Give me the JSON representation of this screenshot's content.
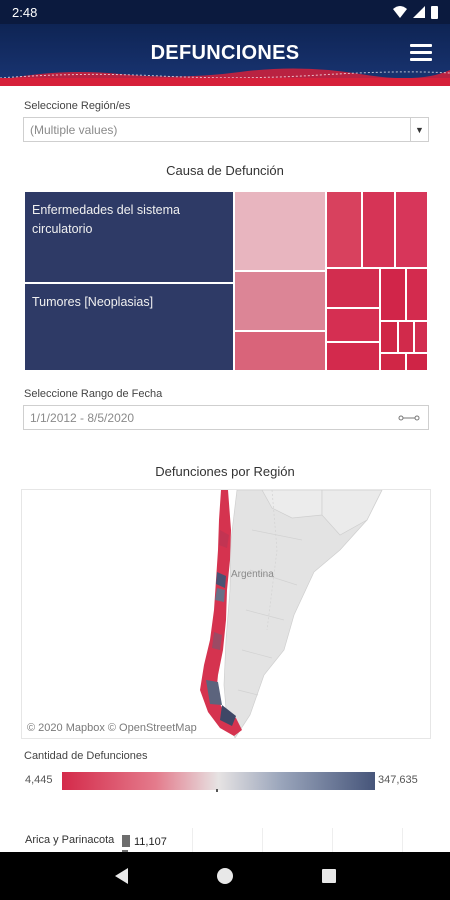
{
  "status": {
    "time": "2:48"
  },
  "header": {
    "title": "DEFUNCIONES",
    "menu_icon": "hamburger-menu-icon"
  },
  "filters": {
    "region_label": "Seleccione Región/es",
    "region_value": "(Multiple values)",
    "date_label": "Seleccione Rango de Fecha",
    "date_value": "1/1/2012 - 8/5/2020"
  },
  "treemap": {
    "title": "Causa de Defunción",
    "labels": [
      "Enfermedades del sistema circulatorio",
      "Tumores [Neoplasias]"
    ],
    "colors": {
      "navy": "#2e3a66",
      "red": "#d42a4a",
      "pink": "#e8b5bf"
    }
  },
  "map": {
    "title": "Defunciones por Región",
    "country_label": "Argentina",
    "attribution": "© 2020 Mapbox © OpenStreetMap"
  },
  "legend": {
    "title": "Cantidad de Defunciones",
    "min": "4,445",
    "max": "347,635"
  },
  "region_list": [
    {
      "label": "Arica y Parinacota",
      "value": "11,107"
    }
  ]
}
